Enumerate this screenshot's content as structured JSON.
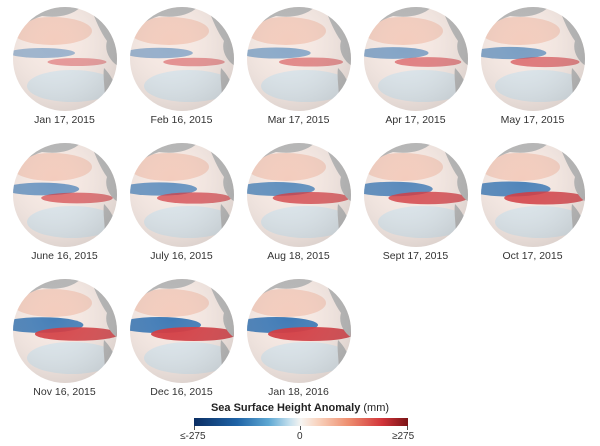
{
  "panels": [
    {
      "date": "Jan 17, 2015"
    },
    {
      "date": "Feb 16, 2015"
    },
    {
      "date": "Mar 17, 2015"
    },
    {
      "date": "Apr 17, 2015"
    },
    {
      "date": "May 17, 2015"
    },
    {
      "date": "June 16, 2015"
    },
    {
      "date": "July 16, 2015"
    },
    {
      "date": "Aug 18, 2015"
    },
    {
      "date": "Sept 17, 2015"
    },
    {
      "date": "Oct 17, 2015"
    },
    {
      "date": "Nov 16, 2015"
    },
    {
      "date": "Dec 16, 2015"
    },
    {
      "date": "Jan 18, 2016"
    }
  ],
  "legend": {
    "title": "Sea Surface Height Anomaly",
    "unit": "(mm)",
    "min_label": "≤-275",
    "mid_label": "0",
    "max_label": "≥275",
    "colors": {
      "low": "#0b2e63",
      "mid": "#f6f4f1",
      "high": "#7a1416",
      "land": "#b4b4b4"
    }
  }
}
